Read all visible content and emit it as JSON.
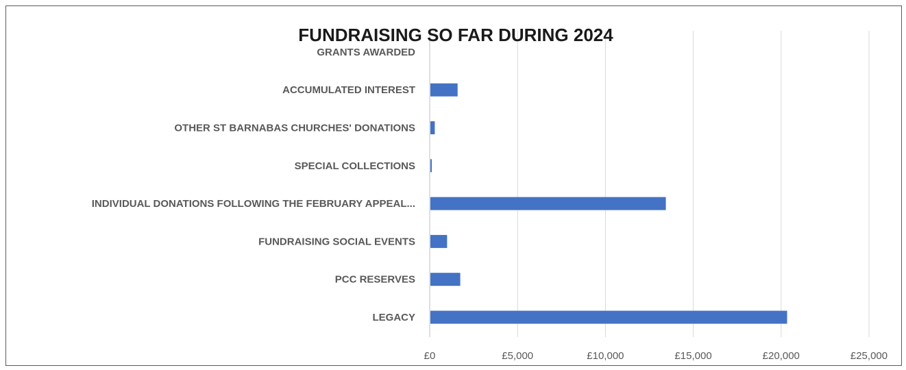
{
  "chart_data": {
    "type": "bar",
    "orientation": "horizontal",
    "title": "FUNDRAISING SO FAR DURING 2024",
    "categories": [
      "LEGACY",
      "PCC RESERVES",
      "FUNDRAISING SOCIAL EVENTS",
      "INDIVIDUAL DONATIONS FOLLOWING THE FEBRUARY APPEAL...",
      "SPECIAL COLLECTIONS",
      "OTHER ST BARNABAS CHURCHES' DONATIONS",
      "ACCUMULATED INTEREST",
      "GRANTS AWARDED"
    ],
    "values": [
      20300,
      1700,
      950,
      13400,
      80,
      250,
      1550,
      0
    ],
    "xlim": [
      0,
      25000
    ],
    "xticks": [
      0,
      5000,
      10000,
      15000,
      20000,
      25000
    ],
    "xtick_labels": [
      "£0",
      "£5,000",
      "£10,000",
      "£15,000",
      "£20,000",
      "£25,000"
    ],
    "xlabel": "",
    "ylabel": "",
    "grid": "vertical",
    "legend": "none",
    "bar_color": "#4472C4",
    "grid_color": "#d9d9d9"
  }
}
